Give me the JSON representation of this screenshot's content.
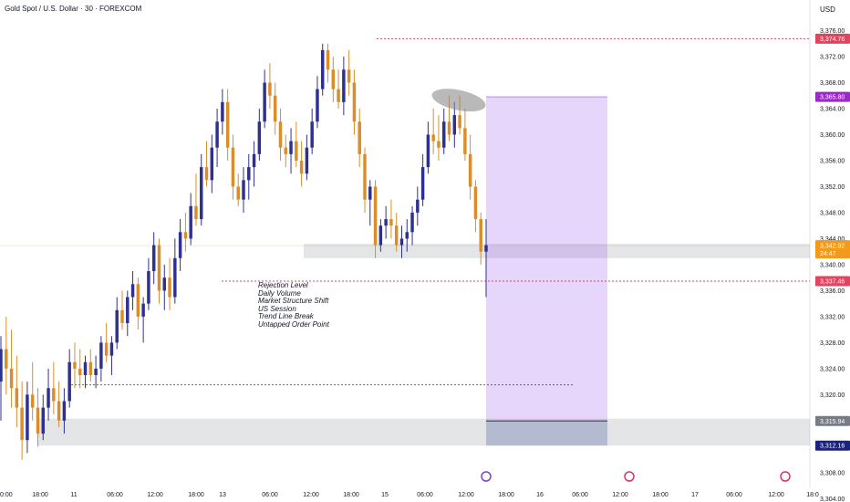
{
  "header": {
    "title": "Gold Spot / U.S. Dollar · 30 · FOREXCOM",
    "currency": "USD"
  },
  "notes": [
    "Rejection Level",
    "Daily Volume",
    "Market Structure Shift",
    "US Session",
    "Trend Line Break",
    "Untapped Order Point"
  ],
  "colors": {
    "up": "#2f3190",
    "down": "#d98e2b",
    "target": "#9a29c9",
    "stop_line": "#e0445f",
    "price_tag": "#f39a1a"
  },
  "chart_data": {
    "type": "candlestick",
    "y_ticks": [
      3304,
      3308,
      3312,
      3316,
      3320,
      3324,
      3328,
      3332,
      3336,
      3340,
      3344,
      3348,
      3352,
      3356,
      3360,
      3364,
      3368,
      3372,
      3376
    ],
    "ylim": [
      3303.2,
      3377.2
    ],
    "x_ticks": [
      "0:00",
      "18:00",
      "11",
      "06:00",
      "12:00",
      "18:00",
      "13",
      "06:00",
      "12:00",
      "18:00",
      "15",
      "06:00",
      "12:00",
      "18:00",
      "16",
      "06:00",
      "12:00",
      "18:00",
      "17",
      "06:00",
      "12:00",
      "18:0"
    ],
    "price_labels": [
      {
        "text": "3,374.76",
        "value": 3374.76,
        "color": "#e0445f"
      },
      {
        "text": "3,365.80",
        "value": 3365.8,
        "color": "#9a29c9"
      },
      {
        "text": "3,342.92",
        "value": 3342.92,
        "color": "#f39a1a",
        "countdown": "24:47"
      },
      {
        "text": "3,337.46",
        "value": 3337.46,
        "color": "#e0445f"
      },
      {
        "text": "3,315.94",
        "value": 3315.94,
        "color": "#787b86"
      },
      {
        "text": "3,312.16",
        "value": 3312.16,
        "color": "#1a237e"
      }
    ],
    "levels": {
      "upper_dotted": 3374.76,
      "mid_dotted": 3337.46,
      "lower_dotted": 3321.5,
      "current": 3342.92
    },
    "zones": [
      {
        "from": 3341.0,
        "to": 3343.2
      },
      {
        "from": 3312.16,
        "to": 3316.3
      }
    ],
    "position": {
      "entry": 3315.94,
      "target": 3365.8,
      "stop": 3312.16
    },
    "candles": [
      [
        3322,
        3329,
        3316,
        3327
      ],
      [
        3327,
        3332,
        3320,
        3324
      ],
      [
        3324,
        3330,
        3318,
        3321
      ],
      [
        3321,
        3326,
        3315,
        3318
      ],
      [
        3318,
        3322,
        3310,
        3313
      ],
      [
        3313,
        3322,
        3311,
        3320
      ],
      [
        3320,
        3325,
        3316,
        3318
      ],
      [
        3318,
        3321,
        3312,
        3314
      ],
      [
        3314,
        3320,
        3313,
        3318
      ],
      [
        3318,
        3324,
        3316,
        3321
      ],
      [
        3321,
        3325,
        3317,
        3319
      ],
      [
        3319,
        3322,
        3315,
        3316
      ],
      [
        3316,
        3321,
        3314,
        3319
      ],
      [
        3319,
        3327,
        3318,
        3325
      ],
      [
        3325,
        3328,
        3321,
        3324
      ],
      [
        3324,
        3327,
        3321,
        3323
      ],
      [
        3323,
        3326,
        3321,
        3325
      ],
      [
        3325,
        3327,
        3322,
        3323
      ],
      [
        3323,
        3326,
        3321,
        3324
      ],
      [
        3324,
        3329,
        3322,
        3328
      ],
      [
        3328,
        3331,
        3325,
        3326
      ],
      [
        3326,
        3329,
        3323,
        3328
      ],
      [
        3328,
        3335,
        3327,
        3333
      ],
      [
        3333,
        3336,
        3330,
        3331
      ],
      [
        3331,
        3336,
        3329,
        3335
      ],
      [
        3335,
        3339,
        3333,
        3337
      ],
      [
        3337,
        3338,
        3330,
        3332
      ],
      [
        3332,
        3335,
        3328,
        3334
      ],
      [
        3334,
        3341,
        3333,
        3339
      ],
      [
        3339,
        3345,
        3337,
        3343
      ],
      [
        3343,
        3344,
        3334,
        3336
      ],
      [
        3336,
        3340,
        3333,
        3338
      ],
      [
        3338,
        3341,
        3333,
        3335
      ],
      [
        3335,
        3344,
        3334,
        3341
      ],
      [
        3341,
        3347,
        3339,
        3345
      ],
      [
        3345,
        3348,
        3342,
        3344
      ],
      [
        3344,
        3351,
        3343,
        3349
      ],
      [
        3349,
        3354,
        3346,
        3347
      ],
      [
        3347,
        3357,
        3346,
        3355
      ],
      [
        3355,
        3359,
        3352,
        3353
      ],
      [
        3353,
        3360,
        3351,
        3358
      ],
      [
        3358,
        3364,
        3355,
        3362
      ],
      [
        3362,
        3367,
        3360,
        3365
      ],
      [
        3365,
        3367,
        3356,
        3358
      ],
      [
        3358,
        3360,
        3350,
        3352
      ],
      [
        3352,
        3354,
        3349,
        3350
      ],
      [
        3350,
        3355,
        3348,
        3353
      ],
      [
        3353,
        3357,
        3350,
        3355
      ],
      [
        3355,
        3359,
        3352,
        3357
      ],
      [
        3357,
        3364,
        3356,
        3362
      ],
      [
        3362,
        3370,
        3361,
        3368
      ],
      [
        3368,
        3371,
        3364,
        3366
      ],
      [
        3366,
        3368,
        3360,
        3362
      ],
      [
        3362,
        3364,
        3356,
        3358
      ],
      [
        3358,
        3360,
        3355,
        3357
      ],
      [
        3357,
        3361,
        3354,
        3359
      ],
      [
        3359,
        3362,
        3355,
        3356
      ],
      [
        3356,
        3359,
        3352,
        3354
      ],
      [
        3354,
        3360,
        3353,
        3358
      ],
      [
        3358,
        3364,
        3357,
        3362
      ],
      [
        3362,
        3369,
        3361,
        3367
      ],
      [
        3367,
        3374,
        3366,
        3373
      ],
      [
        3373,
        3374,
        3368,
        3370
      ],
      [
        3370,
        3372,
        3365,
        3367
      ],
      [
        3367,
        3370,
        3364,
        3365
      ],
      [
        3365,
        3372,
        3363,
        3370
      ],
      [
        3370,
        3373,
        3366,
        3368
      ],
      [
        3368,
        3370,
        3360,
        3362
      ],
      [
        3362,
        3364,
        3355,
        3357
      ],
      [
        3357,
        3358,
        3348,
        3350
      ],
      [
        3350,
        3353,
        3346,
        3352
      ],
      [
        3352,
        3353,
        3341,
        3343
      ],
      [
        3343,
        3347,
        3342,
        3346
      ],
      [
        3346,
        3349,
        3344,
        3347
      ],
      [
        3347,
        3350,
        3344,
        3346
      ],
      [
        3346,
        3348,
        3342,
        3343
      ],
      [
        3343,
        3346,
        3341,
        3344
      ],
      [
        3344,
        3347,
        3342,
        3345
      ],
      [
        3345,
        3349,
        3343,
        3348
      ],
      [
        3348,
        3352,
        3346,
        3350
      ],
      [
        3350,
        3357,
        3349,
        3355
      ],
      [
        3355,
        3362,
        3354,
        3360
      ],
      [
        3360,
        3364,
        3357,
        3359
      ],
      [
        3359,
        3363,
        3356,
        3358
      ],
      [
        3358,
        3364,
        3357,
        3362
      ],
      [
        3362,
        3366,
        3359,
        3360
      ],
      [
        3360,
        3365,
        3358,
        3363
      ],
      [
        3363,
        3366,
        3360,
        3361
      ],
      [
        3361,
        3364,
        3356,
        3357
      ],
      [
        3357,
        3360,
        3350,
        3352
      ],
      [
        3352,
        3353,
        3345,
        3347
      ],
      [
        3347,
        3348,
        3340,
        3342
      ],
      [
        3342,
        3347,
        3335,
        3343
      ]
    ]
  }
}
